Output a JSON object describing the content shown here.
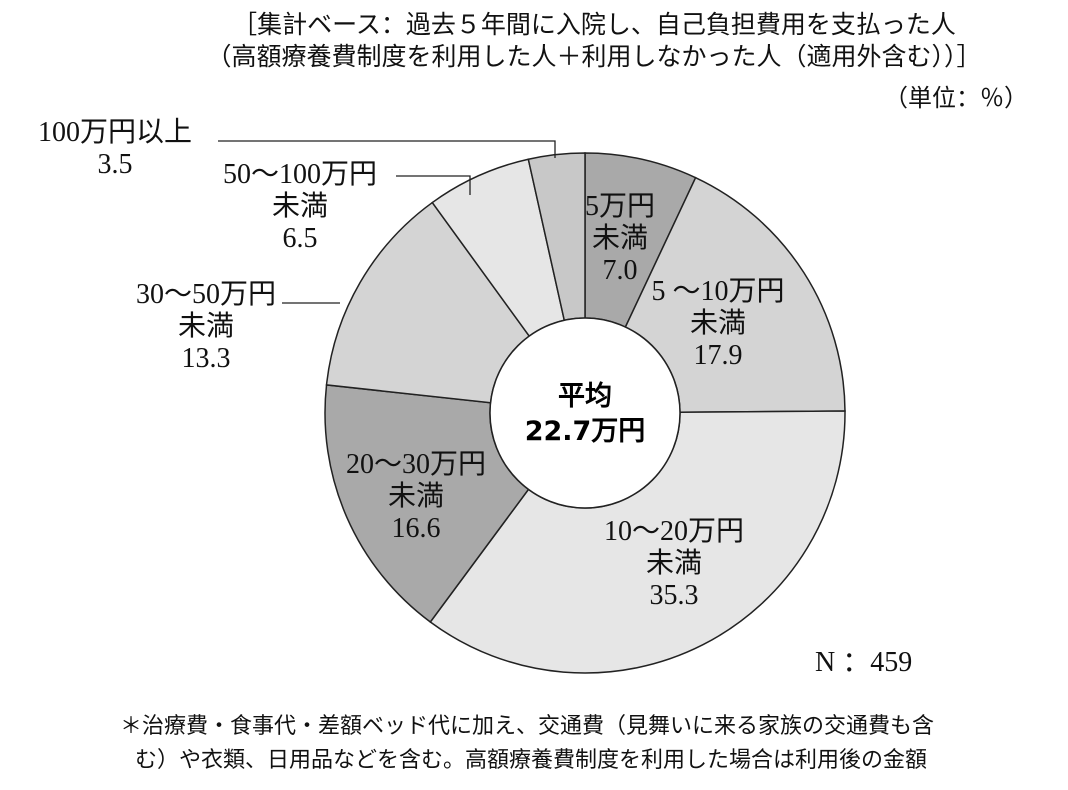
{
  "header": {
    "base_line1": "［集計ベース：過去５年間に入院し、自己負担費用を支払った人",
    "base_line2": "（高額療養費制度を利用した人＋利用しなかった人（適用外含む））］",
    "unit": "（単位：％）"
  },
  "chart_data": {
    "type": "pie",
    "variant": "donut",
    "center_label_line1": "平均",
    "center_label_line2": "22.7万円",
    "n_label": "N ：459",
    "slices": [
      {
        "label_lines": [
          "5万円",
          "未満"
        ],
        "value": 7.0,
        "value_text": "7.0",
        "color": "#a9a9a9"
      },
      {
        "label_lines": [
          "5 ～10万円",
          "未満"
        ],
        "value": 17.9,
        "value_text": "17.9",
        "color": "#d4d4d4"
      },
      {
        "label_lines": [
          "10～20万円",
          "未満"
        ],
        "value": 35.3,
        "value_text": "35.3",
        "color": "#e6e6e6"
      },
      {
        "label_lines": [
          "20～30万円",
          "未満"
        ],
        "value": 16.6,
        "value_text": "16.6",
        "color": "#a9a9a9"
      },
      {
        "label_lines": [
          "30～50万円",
          "未満"
        ],
        "value": 13.3,
        "value_text": "13.3",
        "color": "#d4d4d4"
      },
      {
        "label_lines": [
          "50～100万円",
          "未満"
        ],
        "value": 6.5,
        "value_text": "6.5",
        "color": "#e6e6e6"
      },
      {
        "label_lines": [
          "100万円以上"
        ],
        "value": 3.5,
        "value_text": "3.5",
        "color": "#c8c8c8"
      }
    ]
  },
  "footnote": {
    "line1": "＊治療費・食事代・差額ベッド代に加え、交通費（見舞いに来る家族の交通費も含",
    "line2": "む）や衣類、日用品などを含む。高額療養費制度を利用した場合は利用後の金額"
  }
}
